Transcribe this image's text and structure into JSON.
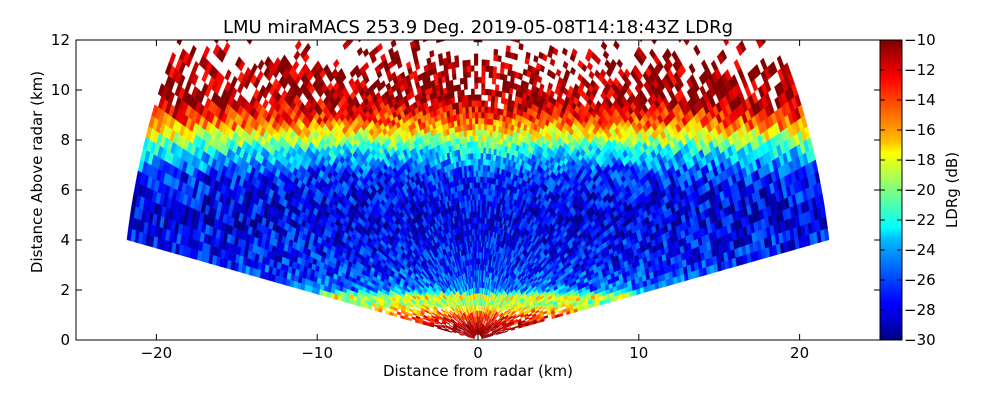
{
  "chart_data": {
    "type": "heatmap",
    "title": "LMU miraMACS 253.9 Deg. 2019-05-08T14:18:43Z  LDRg",
    "xlabel": "Distance from radar (km)",
    "ylabel": "Distance Above radar  (km)",
    "xlim": [
      -25,
      25
    ],
    "ylim": [
      0,
      12
    ],
    "x_ticks": [
      -20,
      -10,
      0,
      10,
      20
    ],
    "y_ticks": [
      0,
      2,
      4,
      6,
      8,
      10,
      12
    ],
    "x_tick_labels": [
      "−20",
      "−10",
      "0",
      "10",
      "20"
    ],
    "y_tick_labels": [
      "0",
      "2",
      "4",
      "6",
      "8",
      "10",
      "12"
    ],
    "colorbar": {
      "label": "LDRg (dB)",
      "min": -30,
      "max": -10,
      "ticks": [
        -30,
        -28,
        -26,
        -24,
        -22,
        -20,
        -18,
        -16,
        -14,
        -12,
        -10
      ],
      "tick_labels": [
        "−30",
        "−28",
        "−26",
        "−24",
        "−22",
        "−20",
        "−18",
        "−16",
        "−14",
        "−12",
        "−10"
      ],
      "colormap": "jet"
    },
    "scan": {
      "elevation_min_deg": 10.4,
      "elevation_max_deg": 169.6,
      "max_range_km": 22.2
    },
    "layers": [
      {
        "h_km": 0.4,
        "ldr_db": -10
      },
      {
        "h_km": 1.0,
        "ldr_db": -14
      },
      {
        "h_km": 1.5,
        "ldr_db": -20
      },
      {
        "h_km": 1.7,
        "ldr_db": -17
      },
      {
        "h_km": 2.0,
        "ldr_db": -25
      },
      {
        "h_km": 3.0,
        "ldr_db": -27
      },
      {
        "h_km": 5.0,
        "ldr_db": -28
      },
      {
        "h_km": 6.5,
        "ldr_db": -27
      },
      {
        "h_km": 7.5,
        "ldr_db": -23
      },
      {
        "h_km": 8.2,
        "ldr_db": -18
      },
      {
        "h_km": 8.8,
        "ldr_db": -14
      },
      {
        "h_km": 9.5,
        "ldr_db": -11
      },
      {
        "h_km": 12.0,
        "ldr_db": -10
      }
    ]
  }
}
